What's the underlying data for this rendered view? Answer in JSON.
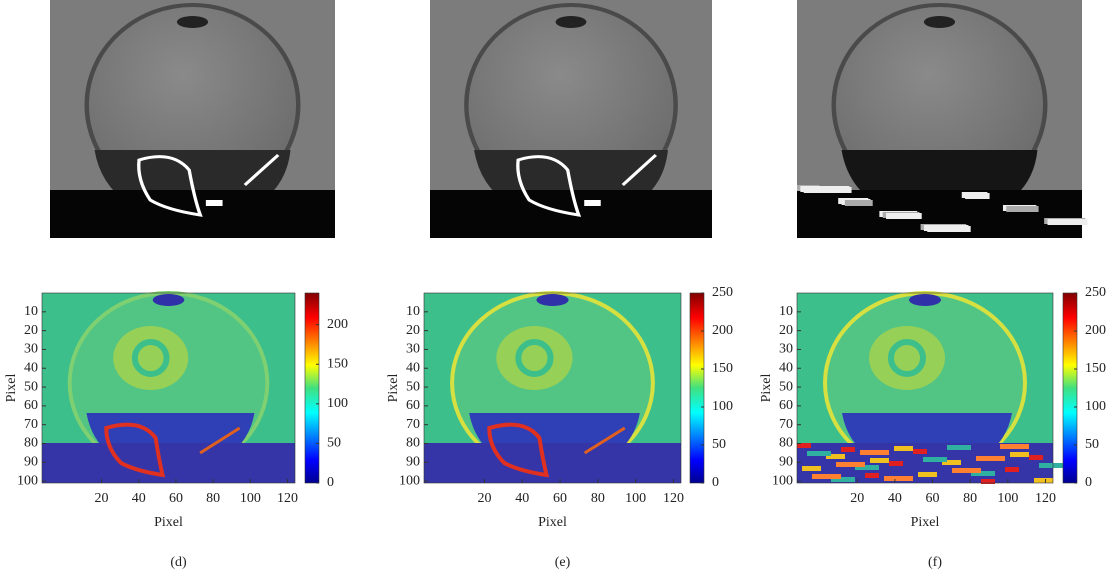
{
  "chart_data": [
    {
      "type": "heatmap",
      "caption": "(d)",
      "xlabel": "Pixel",
      "ylabel": "Pixel",
      "xlim": [
        -12,
        124
      ],
      "xticks": [
        20,
        40,
        60,
        80,
        100,
        120
      ],
      "ylim": [
        0,
        101
      ],
      "yreverse": true,
      "yticks": [
        10,
        20,
        30,
        40,
        50,
        60,
        70,
        80,
        90,
        100
      ],
      "colormap": "jet",
      "clim": [
        0,
        240
      ],
      "cticks": [
        0,
        50,
        100,
        150,
        200
      ]
    },
    {
      "type": "heatmap",
      "caption": "(e)",
      "xlabel": "Pixel",
      "ylabel": "Pixel",
      "xlim": [
        -12,
        124
      ],
      "xticks": [
        20,
        40,
        60,
        80,
        100,
        120
      ],
      "ylim": [
        0,
        101
      ],
      "yreverse": true,
      "yticks": [
        10,
        20,
        30,
        40,
        50,
        60,
        70,
        80,
        90,
        100
      ],
      "colormap": "jet",
      "clim": [
        0,
        250
      ],
      "cticks": [
        0,
        50,
        100,
        150,
        200,
        250
      ]
    },
    {
      "type": "heatmap",
      "caption": "(f)",
      "xlabel": "Pixel",
      "ylabel": "Pixel",
      "xlim": [
        -12,
        124
      ],
      "xticks": [
        20,
        40,
        60,
        80,
        100,
        120
      ],
      "ylim": [
        0,
        101
      ],
      "yreverse": true,
      "yticks": [
        10,
        20,
        30,
        40,
        50,
        60,
        70,
        80,
        90,
        100
      ],
      "colormap": "jet",
      "clim": [
        0,
        250
      ],
      "cticks": [
        0,
        50,
        100,
        150,
        200,
        250
      ]
    }
  ]
}
